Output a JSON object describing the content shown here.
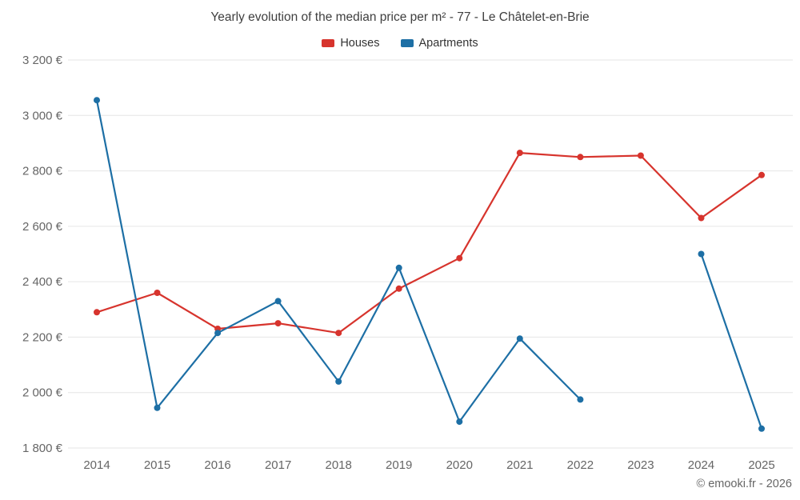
{
  "header": {
    "title": "Yearly evolution of the median price per m² - 77 - Le Châtelet-en-Brie"
  },
  "footer": {
    "credit": "© emooki.fr - 2026"
  },
  "chart_data": {
    "type": "line",
    "title": "Yearly evolution of the median price per m² - 77 - Le Châtelet-en-Brie",
    "categories": [
      "2014",
      "2015",
      "2016",
      "2017",
      "2018",
      "2019",
      "2020",
      "2021",
      "2022",
      "2023",
      "2024",
      "2025"
    ],
    "series": [
      {
        "name": "Houses",
        "color": "#d7342d",
        "values": [
          2290,
          2360,
          2230,
          2250,
          2215,
          2375,
          2485,
          2865,
          2850,
          2855,
          2630,
          2785
        ]
      },
      {
        "name": "Apartments",
        "color": "#1d6fa5",
        "values": [
          3055,
          1945,
          2215,
          2330,
          2040,
          2450,
          1895,
          2195,
          1975,
          null,
          2500,
          1870
        ]
      }
    ],
    "xlabel": "",
    "ylabel": "",
    "ylim": [
      1800,
      3200
    ],
    "ytick_step": 200,
    "y_suffix": " €",
    "grid": "horizontal",
    "legend_position": "top",
    "colors": {
      "grid_line": "#e6e6e6",
      "tick_label": "#666666",
      "title_text": "#3f3f3f"
    }
  }
}
